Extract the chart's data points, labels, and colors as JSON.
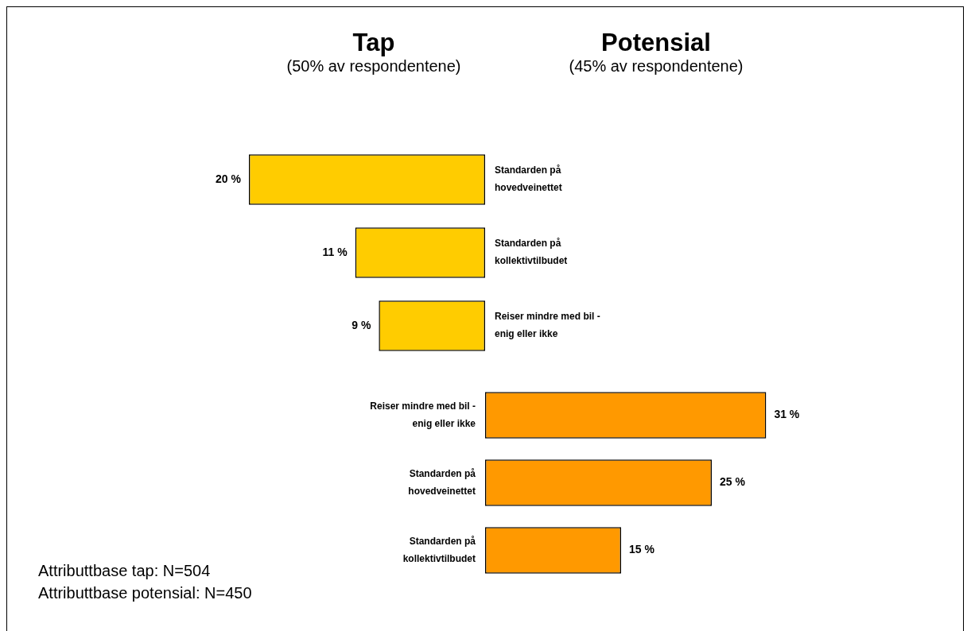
{
  "chart_data": [
    {
      "type": "bar",
      "title": "Tap",
      "subtitle": "(50% av respondentene)",
      "orientation": "horizontal",
      "categories": [
        "Standarden på hovedveinettet",
        "Standarden på kollektivtilbudet",
        "Reiser mindre med bil - enig eller ikke"
      ],
      "values": [
        20,
        11,
        9
      ],
      "color": "#ffcc00",
      "data_labels": true,
      "value_labels": [
        "20 %",
        "11 %",
        "9 %"
      ],
      "tick_labels": "y"
    },
    {
      "type": "bar",
      "title": "Potensial",
      "subtitle": "(45% av respondentene)",
      "orientation": "horizontal",
      "categories": [
        "Reiser mindre med bil - enig eller ikke",
        "Standarden på hovedveinettet",
        "Standarden på kollektivtilbudet"
      ],
      "values": [
        31,
        25,
        15
      ],
      "color": "#ff9900",
      "data_labels": true,
      "value_labels": [
        "31 %",
        "25 %",
        "15 %"
      ],
      "tick_labels": "y",
      "annotations": [
        "Attributtbase tap: N=504",
        "Attributtbase potensial: N=450"
      ]
    }
  ]
}
